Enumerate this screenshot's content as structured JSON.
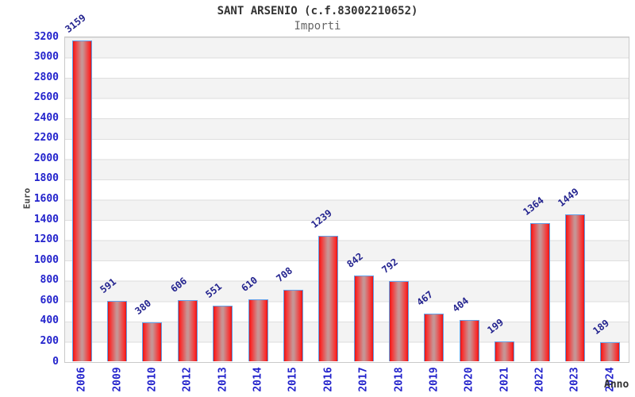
{
  "chart_data": {
    "type": "bar",
    "title": "SANT ARSENIO (c.f.83002210652)",
    "subtitle": "Importi",
    "ylabel": "Euro",
    "xlabel": "Anno",
    "categories": [
      "2006",
      "2009",
      "2010",
      "2012",
      "2013",
      "2014",
      "2015",
      "2016",
      "2017",
      "2018",
      "2019",
      "2020",
      "2021",
      "2022",
      "2023",
      "2024"
    ],
    "values": [
      3159,
      591,
      380,
      606,
      551,
      610,
      708,
      1239,
      842,
      792,
      467,
      404,
      199,
      1364,
      1449,
      189
    ],
    "ylim": [
      0,
      3200
    ],
    "ytick_step": 200,
    "grid": true,
    "legend_position": "none",
    "colors": {
      "bar_border": "#64a0e8",
      "bar_edge": "#d81717",
      "bar_bright": "#fb2a2a",
      "bar_center": "#c79494",
      "axis_tick_label": "#2323cc",
      "value_label": "#24248f",
      "title": "#333333",
      "subtitle": "#666666",
      "axis_name_label": "#444444",
      "band_gray": "#f3f3f3",
      "band_white": "#ffffff",
      "gridline": "#dedede",
      "plot_border": "#c9c9c9"
    }
  }
}
